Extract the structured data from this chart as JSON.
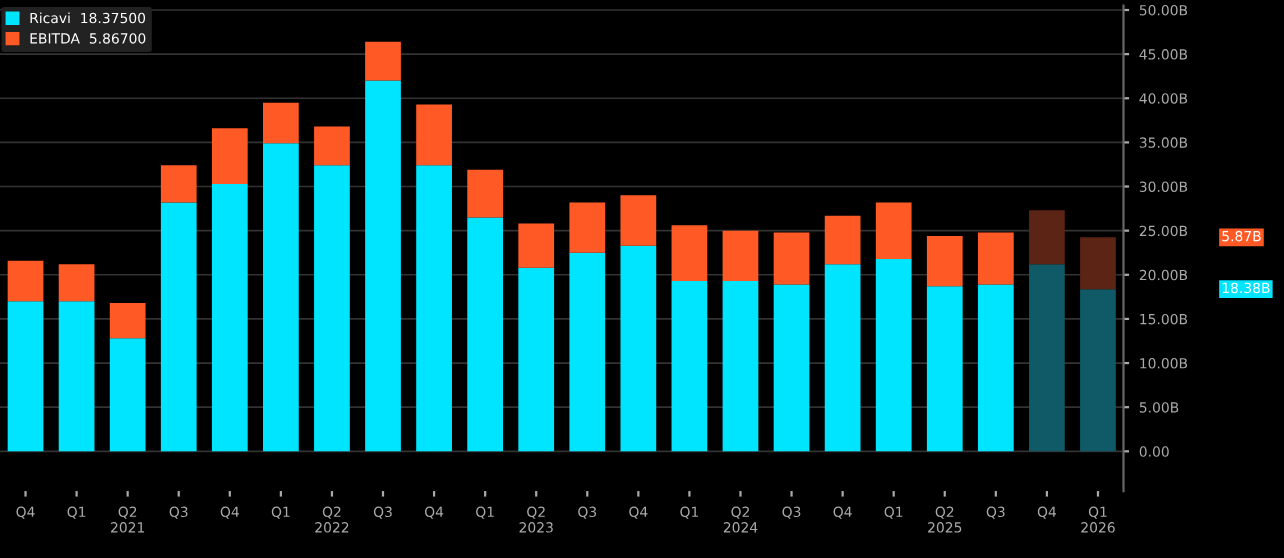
{
  "chart_data": {
    "type": "bar",
    "stacked": true,
    "categories": [
      "Q4",
      "Q1",
      "Q2\n2021",
      "Q3",
      "Q4",
      "Q1",
      "Q2\n2022",
      "Q3",
      "Q4",
      "Q1",
      "Q2\n2023",
      "Q3",
      "Q4",
      "Q1",
      "Q2\n2024",
      "Q3",
      "Q4",
      "Q1",
      "Q2\n2025",
      "Q3",
      "Q4",
      "Q1\n2026"
    ],
    "series": [
      {
        "name": "Ricavi  18.37500",
        "color": "#00e5ff",
        "colors": [
          "#00e5ff",
          "#00e5ff",
          "#00e5ff",
          "#00e5ff",
          "#00e5ff",
          "#00e5ff",
          "#00e5ff",
          "#00e5ff",
          "#00e5ff",
          "#00e5ff",
          "#00e5ff",
          "#00e5ff",
          "#00e5ff",
          "#00e5ff",
          "#00e5ff",
          "#00e5ff",
          "#00e5ff",
          "#00e5ff",
          "#00e5ff",
          "#00e5ff",
          "#0f5a66",
          "#0f5a66"
        ],
        "values": [
          17.0,
          17.0,
          12.8,
          28.2,
          30.3,
          34.9,
          32.4,
          42.0,
          32.4,
          26.5,
          20.8,
          22.5,
          23.3,
          19.3,
          19.3,
          18.9,
          21.2,
          21.8,
          18.7,
          18.9,
          21.2,
          18.375
        ]
      },
      {
        "name": "EBITDA  5.86700",
        "color": "#ff5a26",
        "colors": [
          "#ff5a26",
          "#ff5a26",
          "#ff5a26",
          "#ff5a26",
          "#ff5a26",
          "#ff5a26",
          "#ff5a26",
          "#ff5a26",
          "#ff5a26",
          "#ff5a26",
          "#ff5a26",
          "#ff5a26",
          "#ff5a26",
          "#ff5a26",
          "#ff5a26",
          "#ff5a26",
          "#ff5a26",
          "#ff5a26",
          "#ff5a26",
          "#ff5a26",
          "#5c2414",
          "#5c2414"
        ],
        "values": [
          4.6,
          4.2,
          4.0,
          4.2,
          6.3,
          4.6,
          4.4,
          4.4,
          6.9,
          5.4,
          5.0,
          5.7,
          5.7,
          6.3,
          5.7,
          5.9,
          5.5,
          6.4,
          5.7,
          5.9,
          6.1,
          5.867
        ]
      }
    ],
    "ylim": [
      -4.5,
      50.5
    ],
    "yticks": [
      {
        "value": 0,
        "label": "0.00"
      },
      {
        "value": 5,
        "label": "5.00B"
      },
      {
        "value": 10,
        "label": "10.00B"
      },
      {
        "value": 15,
        "label": "15.00B"
      },
      {
        "value": 20,
        "label": "20.00B"
      },
      {
        "value": 25,
        "label": "25.00B"
      },
      {
        "value": 30,
        "label": "30.00B"
      },
      {
        "value": 35,
        "label": "35.00B"
      },
      {
        "value": 40,
        "label": "40.00B"
      },
      {
        "value": 45,
        "label": "45.00B"
      },
      {
        "value": 50,
        "label": "50.00B"
      }
    ],
    "annotations": [
      "5.87B",
      "18.38B"
    ],
    "grid": "y",
    "legend": "top left"
  }
}
